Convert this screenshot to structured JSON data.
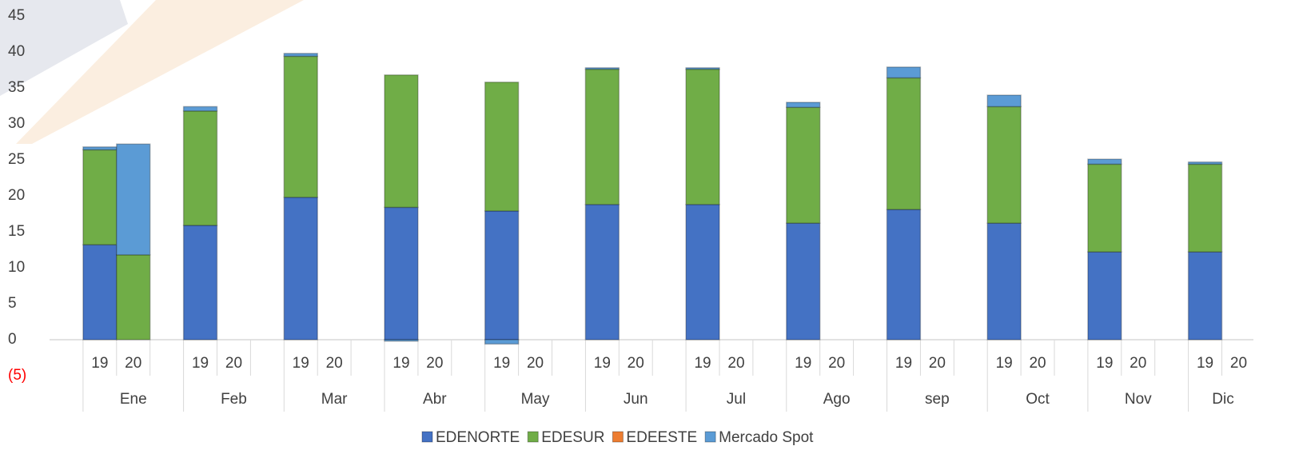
{
  "chart_data": {
    "type": "stacked_bar",
    "categories": [
      "19",
      "20",
      "19",
      "20",
      "19",
      "20",
      "19",
      "20",
      "19",
      "20",
      "19",
      "20",
      "19",
      "20",
      "19",
      "20",
      "19",
      "20",
      "19",
      "20",
      "19",
      "20",
      "19",
      "20"
    ],
    "category_groups": [
      "Ene",
      "Feb",
      "Mar",
      "Abr",
      "May",
      "Jun",
      "Jul",
      "Ago",
      "sep",
      "Oct",
      "Nov",
      "Dic"
    ],
    "series": [
      {
        "name": "EDENORTE",
        "color": "#4472c4",
        "values": [
          13.2,
          0,
          15.9,
          null,
          19.8,
          null,
          18.4,
          null,
          17.9,
          null,
          18.8,
          null,
          18.8,
          null,
          16.2,
          null,
          18.1,
          null,
          16.2,
          null,
          12.2,
          null,
          12.2,
          null
        ]
      },
      {
        "name": "EDESUR",
        "color": "#70ad47",
        "values": [
          13.2,
          11.8,
          15.9,
          null,
          19.6,
          null,
          18.4,
          null,
          17.9,
          null,
          18.8,
          null,
          18.8,
          null,
          16.1,
          null,
          18.3,
          null,
          16.2,
          null,
          12.2,
          null,
          12.2,
          null
        ]
      },
      {
        "name": "EDEESTE",
        "color": "#ed7d31",
        "values": [
          0,
          0,
          0,
          null,
          0,
          null,
          0,
          null,
          0,
          null,
          0,
          null,
          0,
          null,
          0,
          null,
          0,
          null,
          0,
          null,
          0,
          null,
          0,
          null
        ]
      },
      {
        "name": "Mercado Spot",
        "color": "#5b9bd5",
        "values": [
          0.4,
          15.4,
          0.6,
          null,
          0.4,
          null,
          -0.2,
          null,
          -0.6,
          null,
          0.2,
          null,
          0.2,
          null,
          0.7,
          null,
          1.5,
          null,
          1.6,
          null,
          0.7,
          null,
          0.3,
          null
        ]
      }
    ],
    "ylim": [
      -5,
      45
    ],
    "yticks": [
      {
        "value": -5,
        "label": "(5)"
      },
      0,
      5,
      10,
      15,
      20,
      25,
      30,
      35,
      40,
      45
    ],
    "negative_tick_color": "#ff0000",
    "grid": false,
    "legend": "bottom"
  }
}
